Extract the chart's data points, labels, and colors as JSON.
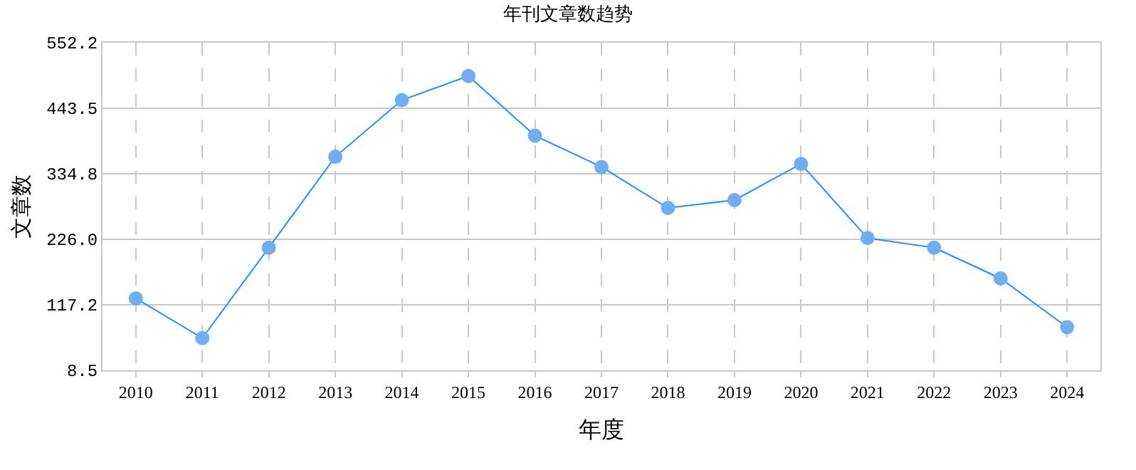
{
  "chart_data": {
    "type": "line",
    "title": "年刊文章数趋势",
    "xlabel": "年度",
    "ylabel": "文章数",
    "categories": [
      "2010",
      "2011",
      "2012",
      "2013",
      "2014",
      "2015",
      "2016",
      "2017",
      "2018",
      "2019",
      "2020",
      "2021",
      "2022",
      "2023",
      "2024"
    ],
    "series": [
      {
        "color": "#1e90ff",
        "values": [
          128,
          62,
          212,
          363,
          457,
          497,
          398,
          346,
          278,
          291,
          351,
          228,
          212,
          161,
          80
        ]
      }
    ],
    "ylim": [
      8.5,
      552.2
    ],
    "yticks": [
      {
        "value": 8.5,
        "label": "8.5"
      },
      {
        "value": 117.2,
        "label": "117.2"
      },
      {
        "value": 226.0,
        "label": "226.0"
      },
      {
        "value": 334.8,
        "label": "334.8"
      },
      {
        "value": 443.5,
        "label": "443.5"
      },
      {
        "value": 552.2,
        "label": "552.2"
      }
    ],
    "grid": true,
    "marker": "circle",
    "line_style": "solid"
  }
}
